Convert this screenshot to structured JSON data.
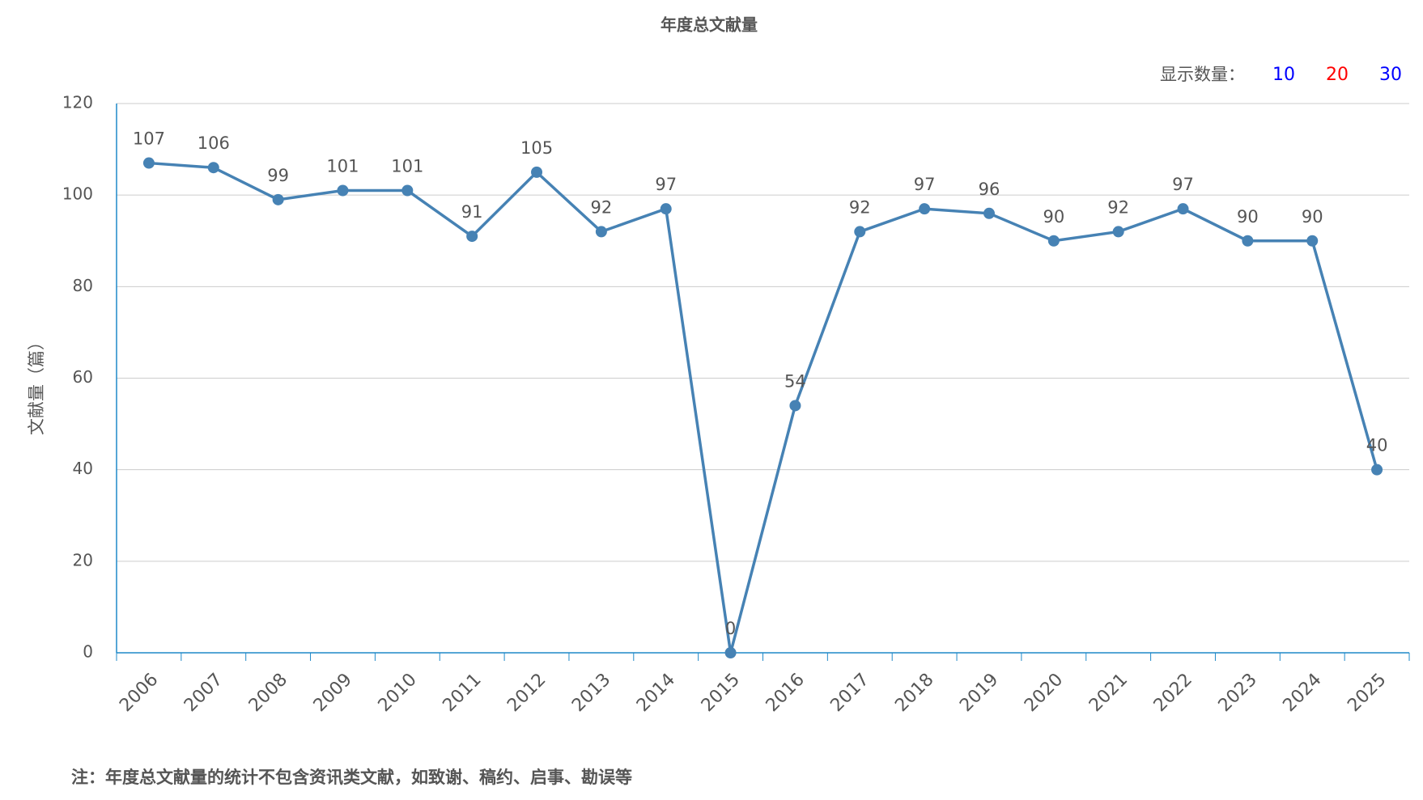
{
  "chart_data": {
    "type": "line",
    "title": "年度总文献量",
    "y_label": "文献量（篇）",
    "categories": [
      "2006",
      "2007",
      "2008",
      "2009",
      "2010",
      "2011",
      "2012",
      "2013",
      "2014",
      "2015",
      "2016",
      "2017",
      "2018",
      "2019",
      "2020",
      "2021",
      "2022",
      "2023",
      "2024",
      "2025"
    ],
    "values": [
      107,
      106,
      99,
      101,
      101,
      91,
      105,
      92,
      97,
      0,
      54,
      92,
      97,
      96,
      90,
      92,
      97,
      90,
      90,
      40
    ],
    "color": "#4682b4",
    "ylim": [
      0,
      120
    ],
    "yticks": [
      0,
      20,
      40,
      60,
      80,
      100,
      120
    ],
    "grid": true
  },
  "controls": {
    "label": "显示数量：",
    "options": [
      {
        "text": "10",
        "color": "#0000ff"
      },
      {
        "text": "20",
        "color": "#ff0000"
      },
      {
        "text": "30",
        "color": "#0000ff"
      }
    ]
  },
  "note": "注：年度总文献量的统计不包含资讯类文献，如致谢、稿约、启事、勘误等"
}
